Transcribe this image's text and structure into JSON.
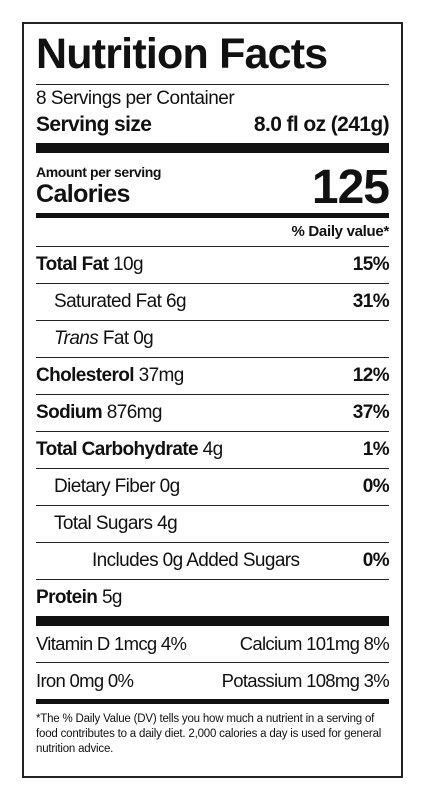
{
  "title": "Nutrition Facts",
  "servings": "8 Servings per Container",
  "serving_size": {
    "label": "Serving size",
    "value": "8.0 fl oz (241g)"
  },
  "amount_per_serving": "Amount per serving",
  "calories": {
    "label": "Calories",
    "value": 125
  },
  "daily_value_header": "% Daily value*",
  "nutrients": [
    {
      "name": "Total Fat",
      "amount": "10g",
      "dv": "15%"
    },
    {
      "name": "Saturated Fat",
      "amount": "6g",
      "dv": "31%"
    },
    {
      "name_italic": "Trans",
      "name": "Fat",
      "amount": "0g"
    },
    {
      "name": "Cholesterol",
      "amount": "37mg",
      "dv": "12%"
    },
    {
      "name": "Sodium",
      "amount": "876mg",
      "dv": "37%"
    },
    {
      "name": "Total Carbohydrate",
      "amount": "4g",
      "dv": "1%"
    },
    {
      "name": "Dietary Fiber",
      "amount": "0g",
      "dv": "0%"
    },
    {
      "name": "Total Sugars",
      "amount": "4g"
    },
    {
      "name": "Includes 0g Added Sugars",
      "dv": "0%"
    },
    {
      "name": "Protein",
      "amount": "5g"
    }
  ],
  "minerals": [
    {
      "name": "Vitamin D",
      "amount": "1mcg",
      "dv": "4%"
    },
    {
      "name": "Calcium",
      "amount": "101mg",
      "dv": "8%"
    },
    {
      "name": "Iron",
      "amount": "0mg",
      "dv": "0%"
    },
    {
      "name": "Potassium",
      "amount": "108mg",
      "dv": "3%"
    }
  ],
  "footnote": "*The % Daily Value (DV) tells you how much a nutrient in a serving of food contributes to a daily diet. 2,000 calories a day is used for general nutrition advice."
}
